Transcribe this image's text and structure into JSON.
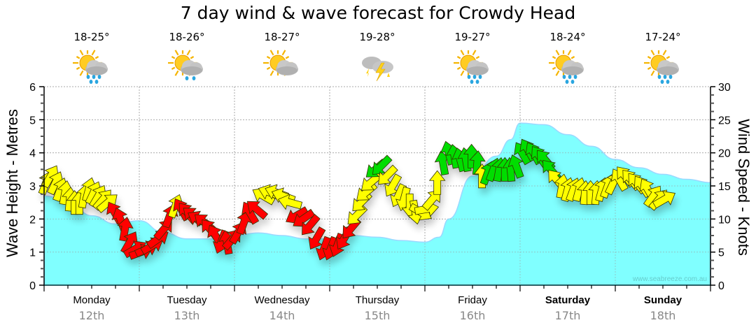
{
  "chart_data": {
    "type": "area",
    "title": "7 day wind & wave forecast for Crowdy Head",
    "ylabel_left": "Wave Height - Metres",
    "ylabel_right": "Wind Speed - Knots",
    "ylim_left": [
      0,
      6
    ],
    "ylim_right": [
      0,
      30
    ],
    "yticks_left": [
      "0",
      "1",
      "2",
      "3",
      "4",
      "5",
      "6"
    ],
    "yticks_right": [
      "0",
      "5",
      "10",
      "15",
      "20",
      "25",
      "30"
    ],
    "grid": true,
    "watermark": "www.seabreeze.com.au",
    "days": [
      {
        "day": "Monday",
        "date": "12th",
        "temp": "18-25°",
        "icon": "sun-cloud-heavy-rain-icon",
        "bold": false
      },
      {
        "day": "Tuesday",
        "date": "13th",
        "temp": "18-26°",
        "icon": "sun-cloud-light-rain-icon",
        "bold": false
      },
      {
        "day": "Wednesday",
        "date": "14th",
        "temp": "18-27°",
        "icon": "sun-cloud-icon",
        "bold": false
      },
      {
        "day": "Thursday",
        "date": "15th",
        "temp": "19-28°",
        "icon": "thunderstorm-icon",
        "bold": false
      },
      {
        "day": "Friday",
        "date": "16th",
        "temp": "19-27°",
        "icon": "sun-cloud-heavy-rain-icon",
        "bold": false
      },
      {
        "day": "Saturday",
        "date": "17th",
        "temp": "18-24°",
        "icon": "sun-cloud-heavy-rain-icon",
        "bold": true
      },
      {
        "day": "Sunday",
        "date": "18th",
        "temp": "17-24°",
        "icon": "sun-cloud-heavy-rain-icon",
        "bold": true
      }
    ],
    "wave_height": {
      "name": "Wave Height (m)",
      "color": "#80ffff",
      "x_days": [
        0,
        0.25,
        0.5,
        0.75,
        1.0,
        1.25,
        1.5,
        1.75,
        2.0,
        2.25,
        2.5,
        2.75,
        3.0,
        3.25,
        3.5,
        3.75,
        4.0,
        4.15,
        4.25,
        4.5,
        4.75,
        4.9,
        5.0,
        5.25,
        5.5,
        5.75,
        6.0,
        6.25,
        6.5,
        6.75,
        7.0
      ],
      "values": [
        2.7,
        2.55,
        2.1,
        1.85,
        1.95,
        1.6,
        1.4,
        1.4,
        1.5,
        1.58,
        1.5,
        1.4,
        1.4,
        1.5,
        1.45,
        1.35,
        1.3,
        1.45,
        2.0,
        3.3,
        3.9,
        4.4,
        4.9,
        4.85,
        4.55,
        4.2,
        3.8,
        3.55,
        3.35,
        3.2,
        3.1
      ]
    },
    "wind": {
      "name": "Wind Speed (knots)",
      "colors": {
        "light": "#ff0000",
        "moderate": "#ffff00",
        "strong": "#00dd00"
      },
      "points": [
        {
          "t": 0.02,
          "kts": 15.5,
          "dir": 20,
          "band": "moderate"
        },
        {
          "t": 0.07,
          "kts": 16.5,
          "dir": 30,
          "band": "moderate"
        },
        {
          "t": 0.12,
          "kts": 15.5,
          "dir": 25,
          "band": "moderate"
        },
        {
          "t": 0.17,
          "kts": 14.5,
          "dir": 20,
          "band": "moderate"
        },
        {
          "t": 0.22,
          "kts": 14,
          "dir": 10,
          "band": "moderate"
        },
        {
          "t": 0.27,
          "kts": 13,
          "dir": 5,
          "band": "moderate"
        },
        {
          "t": 0.32,
          "kts": 12.5,
          "dir": 0,
          "band": "moderate"
        },
        {
          "t": 0.37,
          "kts": 12.5,
          "dir": 0,
          "band": "moderate"
        },
        {
          "t": 0.42,
          "kts": 13.5,
          "dir": 10,
          "band": "moderate"
        },
        {
          "t": 0.47,
          "kts": 14.5,
          "dir": 15,
          "band": "moderate"
        },
        {
          "t": 0.52,
          "kts": 14,
          "dir": 25,
          "band": "moderate"
        },
        {
          "t": 0.57,
          "kts": 13.5,
          "dir": 30,
          "band": "moderate"
        },
        {
          "t": 0.62,
          "kts": 13,
          "dir": 40,
          "band": "moderate"
        },
        {
          "t": 0.67,
          "kts": 12.5,
          "dir": 50,
          "band": "moderate"
        },
        {
          "t": 0.74,
          "kts": 11,
          "dir": 330,
          "band": "light"
        },
        {
          "t": 0.8,
          "kts": 10,
          "dir": 340,
          "band": "light"
        },
        {
          "t": 0.85,
          "kts": 8.5,
          "dir": 10,
          "band": "light"
        },
        {
          "t": 0.9,
          "kts": 6.5,
          "dir": 30,
          "band": "light"
        },
        {
          "t": 0.96,
          "kts": 5.5,
          "dir": 60,
          "band": "light"
        },
        {
          "t": 1.02,
          "kts": 5,
          "dir": 70,
          "band": "light"
        },
        {
          "t": 1.08,
          "kts": 5.5,
          "dir": 65,
          "band": "light"
        },
        {
          "t": 1.14,
          "kts": 6,
          "dir": 60,
          "band": "light"
        },
        {
          "t": 1.2,
          "kts": 7,
          "dir": 55,
          "band": "light"
        },
        {
          "t": 1.26,
          "kts": 8.5,
          "dir": 40,
          "band": "light"
        },
        {
          "t": 1.32,
          "kts": 10.5,
          "dir": 20,
          "band": "light"
        },
        {
          "t": 1.38,
          "kts": 12,
          "dir": 20,
          "band": "moderate"
        },
        {
          "t": 1.44,
          "kts": 11.5,
          "dir": 330,
          "band": "light"
        },
        {
          "t": 1.5,
          "kts": 11,
          "dir": 320,
          "band": "light"
        },
        {
          "t": 1.56,
          "kts": 10.5,
          "dir": 310,
          "band": "light"
        },
        {
          "t": 1.62,
          "kts": 10,
          "dir": 300,
          "band": "light"
        },
        {
          "t": 1.68,
          "kts": 9.5,
          "dir": 310,
          "band": "light"
        },
        {
          "t": 1.74,
          "kts": 8.5,
          "dir": 320,
          "band": "light"
        },
        {
          "t": 1.8,
          "kts": 7.5,
          "dir": 330,
          "band": "light"
        },
        {
          "t": 1.86,
          "kts": 6.5,
          "dir": 200,
          "band": "light"
        },
        {
          "t": 1.92,
          "kts": 6.5,
          "dir": 350,
          "band": "light"
        },
        {
          "t": 1.98,
          "kts": 7,
          "dir": 40,
          "band": "light"
        },
        {
          "t": 2.04,
          "kts": 8,
          "dir": 30,
          "band": "light"
        },
        {
          "t": 2.1,
          "kts": 9.5,
          "dir": 20,
          "band": "light"
        },
        {
          "t": 2.16,
          "kts": 11,
          "dir": 330,
          "band": "light"
        },
        {
          "t": 2.23,
          "kts": 11.5,
          "dir": 310,
          "band": "light"
        },
        {
          "t": 2.3,
          "kts": 13.5,
          "dir": 300,
          "band": "moderate"
        },
        {
          "t": 2.37,
          "kts": 14,
          "dir": 290,
          "band": "moderate"
        },
        {
          "t": 2.44,
          "kts": 14,
          "dir": 290,
          "band": "moderate"
        },
        {
          "t": 2.51,
          "kts": 13.5,
          "dir": 290,
          "band": "moderate"
        },
        {
          "t": 2.58,
          "kts": 12.5,
          "dir": 285,
          "band": "moderate"
        },
        {
          "t": 2.65,
          "kts": 10.5,
          "dir": 240,
          "band": "light"
        },
        {
          "t": 2.72,
          "kts": 10,
          "dir": 235,
          "band": "light"
        },
        {
          "t": 2.79,
          "kts": 9,
          "dir": 220,
          "band": "light"
        },
        {
          "t": 2.86,
          "kts": 7,
          "dir": 210,
          "band": "light"
        },
        {
          "t": 2.94,
          "kts": 5.5,
          "dir": 200,
          "band": "light"
        },
        {
          "t": 3.01,
          "kts": 5.5,
          "dir": 200,
          "band": "light"
        },
        {
          "t": 3.08,
          "kts": 6,
          "dir": 200,
          "band": "light"
        },
        {
          "t": 3.15,
          "kts": 7,
          "dir": 210,
          "band": "light"
        },
        {
          "t": 3.22,
          "kts": 8.5,
          "dir": 220,
          "band": "light"
        },
        {
          "t": 3.28,
          "kts": 10.5,
          "dir": 225,
          "band": "moderate"
        },
        {
          "t": 3.33,
          "kts": 12.5,
          "dir": 225,
          "band": "moderate"
        },
        {
          "t": 3.38,
          "kts": 14,
          "dir": 230,
          "band": "moderate"
        },
        {
          "t": 3.43,
          "kts": 15.5,
          "dir": 230,
          "band": "moderate"
        },
        {
          "t": 3.48,
          "kts": 17.5,
          "dir": 230,
          "band": "strong"
        },
        {
          "t": 3.54,
          "kts": 18,
          "dir": 225,
          "band": "strong"
        },
        {
          "t": 3.6,
          "kts": 16.5,
          "dir": 225,
          "band": "moderate"
        },
        {
          "t": 3.66,
          "kts": 15,
          "dir": 210,
          "band": "moderate"
        },
        {
          "t": 3.72,
          "kts": 13.5,
          "dir": 205,
          "band": "moderate"
        },
        {
          "t": 3.78,
          "kts": 13,
          "dir": 195,
          "band": "moderate"
        },
        {
          "t": 3.84,
          "kts": 12,
          "dir": 180,
          "band": "moderate"
        },
        {
          "t": 3.9,
          "kts": 11,
          "dir": 170,
          "band": "moderate"
        },
        {
          "t": 3.96,
          "kts": 11,
          "dir": 120,
          "band": "moderate"
        },
        {
          "t": 4.02,
          "kts": 11.5,
          "dir": 80,
          "band": "moderate"
        },
        {
          "t": 4.08,
          "kts": 13,
          "dir": 40,
          "band": "moderate"
        },
        {
          "t": 4.13,
          "kts": 15.5,
          "dir": 0,
          "band": "moderate"
        },
        {
          "t": 4.19,
          "kts": 18.5,
          "dir": 350,
          "band": "strong"
        },
        {
          "t": 4.25,
          "kts": 20,
          "dir": 345,
          "band": "strong"
        },
        {
          "t": 4.31,
          "kts": 19.5,
          "dir": 350,
          "band": "strong"
        },
        {
          "t": 4.37,
          "kts": 19,
          "dir": 345,
          "band": "strong"
        },
        {
          "t": 4.43,
          "kts": 19,
          "dir": 350,
          "band": "strong"
        },
        {
          "t": 4.49,
          "kts": 19.5,
          "dir": 0,
          "band": "strong"
        },
        {
          "t": 4.55,
          "kts": 18.5,
          "dir": 5,
          "band": "strong"
        },
        {
          "t": 4.6,
          "kts": 16.5,
          "dir": 0,
          "band": "moderate"
        },
        {
          "t": 4.66,
          "kts": 17,
          "dir": 20,
          "band": "strong"
        },
        {
          "t": 4.72,
          "kts": 17.5,
          "dir": 20,
          "band": "strong"
        },
        {
          "t": 4.78,
          "kts": 17.5,
          "dir": 10,
          "band": "strong"
        },
        {
          "t": 4.84,
          "kts": 17.5,
          "dir": 0,
          "band": "strong"
        },
        {
          "t": 4.9,
          "kts": 17.5,
          "dir": 355,
          "band": "strong"
        },
        {
          "t": 4.96,
          "kts": 18,
          "dir": 340,
          "band": "strong"
        },
        {
          "t": 5.02,
          "kts": 20,
          "dir": 330,
          "band": "strong"
        },
        {
          "t": 5.08,
          "kts": 20.5,
          "dir": 330,
          "band": "strong"
        },
        {
          "t": 5.14,
          "kts": 20,
          "dir": 330,
          "band": "strong"
        },
        {
          "t": 5.2,
          "kts": 19.5,
          "dir": 325,
          "band": "strong"
        },
        {
          "t": 5.26,
          "kts": 19,
          "dir": 320,
          "band": "strong"
        },
        {
          "t": 5.32,
          "kts": 17.5,
          "dir": 320,
          "band": "strong"
        },
        {
          "t": 5.38,
          "kts": 16,
          "dir": 320,
          "band": "moderate"
        },
        {
          "t": 5.44,
          "kts": 15,
          "dir": 10,
          "band": "moderate"
        },
        {
          "t": 5.5,
          "kts": 14.5,
          "dir": 15,
          "band": "moderate"
        },
        {
          "t": 5.56,
          "kts": 14.5,
          "dir": 20,
          "band": "moderate"
        },
        {
          "t": 5.62,
          "kts": 14.5,
          "dir": 15,
          "band": "moderate"
        },
        {
          "t": 5.68,
          "kts": 14,
          "dir": 5,
          "band": "moderate"
        },
        {
          "t": 5.74,
          "kts": 14,
          "dir": 0,
          "band": "moderate"
        },
        {
          "t": 5.8,
          "kts": 14,
          "dir": 5,
          "band": "moderate"
        },
        {
          "t": 5.86,
          "kts": 14.5,
          "dir": 15,
          "band": "moderate"
        },
        {
          "t": 5.92,
          "kts": 15,
          "dir": 20,
          "band": "moderate"
        },
        {
          "t": 5.98,
          "kts": 15.5,
          "dir": 25,
          "band": "moderate"
        },
        {
          "t": 6.04,
          "kts": 16,
          "dir": 330,
          "band": "moderate"
        },
        {
          "t": 6.1,
          "kts": 16.5,
          "dir": 320,
          "band": "moderate"
        },
        {
          "t": 6.16,
          "kts": 16,
          "dir": 320,
          "band": "moderate"
        },
        {
          "t": 6.22,
          "kts": 15.5,
          "dir": 320,
          "band": "moderate"
        },
        {
          "t": 6.28,
          "kts": 15,
          "dir": 325,
          "band": "moderate"
        },
        {
          "t": 6.34,
          "kts": 14.5,
          "dir": 330,
          "band": "moderate"
        },
        {
          "t": 6.4,
          "kts": 13.5,
          "dir": 35,
          "band": "moderate"
        },
        {
          "t": 6.46,
          "kts": 13,
          "dir": 40,
          "band": "moderate"
        },
        {
          "t": 6.52,
          "kts": 13,
          "dir": 60,
          "band": "moderate"
        }
      ]
    }
  }
}
